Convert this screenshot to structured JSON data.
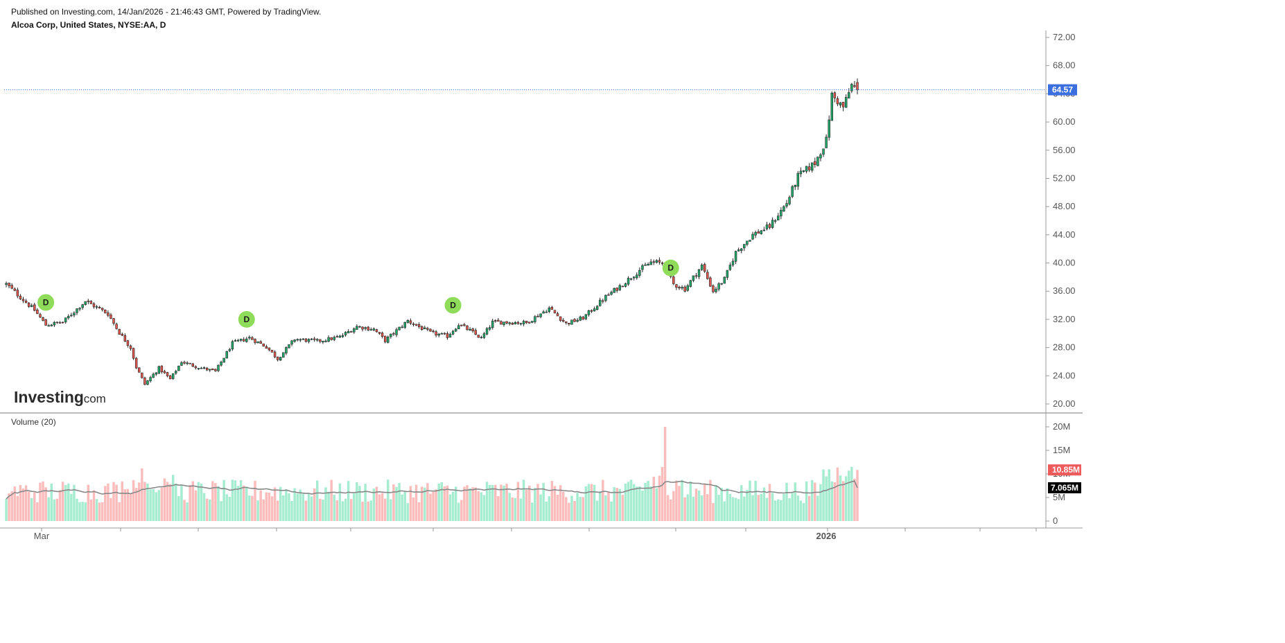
{
  "header": {
    "published": "Published on Investing.com, 14/Jan/2026 - 21:46:43 GMT, Powered by TradingView.",
    "symbol": "Alcoa Corp, United States, NYSE:AA, D"
  },
  "logo": {
    "main": "Investing",
    "suffix": ".com"
  },
  "colors": {
    "up_candle": "#22a86b",
    "down_candle": "#e0574f",
    "up_volume": "#a6ecd0",
    "down_volume": "#fbbcbc",
    "volume_ma": "#888888",
    "price_line": "#2962ff",
    "last_price_badge": "#3b6fe0",
    "volume_badge": "#ef5b5b",
    "volume_ma_badge": "#000000",
    "dividend_marker": "#8fdc5a"
  },
  "chart_data": [
    {
      "type": "candlestick",
      "title": "Alcoa Corp, United States, NYSE:AA, D",
      "y_ticks": [
        "72.00",
        "68.00",
        "64.00",
        "60.00",
        "56.00",
        "52.00",
        "48.00",
        "44.00",
        "40.00",
        "36.00",
        "32.00",
        "28.00",
        "24.00",
        "20.00"
      ],
      "ylim": [
        20,
        72
      ],
      "x_ticks": [
        "Mar",
        "2026"
      ],
      "last_price": "64.57",
      "last_price_value": 64.57,
      "dividend_marker_label": "D",
      "dividend_markers": [
        {
          "index": 14,
          "price": 34.4
        },
        {
          "index": 85,
          "price": 32.0
        },
        {
          "index": 158,
          "price": 34.0
        },
        {
          "index": 235,
          "price": 39.3
        }
      ],
      "anchors": [
        [
          0,
          37.0
        ],
        [
          10,
          33.3
        ],
        [
          14,
          31.2
        ],
        [
          20,
          31.6
        ],
        [
          28,
          34.6
        ],
        [
          36,
          32.8
        ],
        [
          40,
          30.1
        ],
        [
          44,
          28.0
        ],
        [
          46,
          25.2
        ],
        [
          49,
          22.8
        ],
        [
          54,
          25.1
        ],
        [
          58,
          23.5
        ],
        [
          62,
          26.0
        ],
        [
          68,
          25.2
        ],
        [
          74,
          24.6
        ],
        [
          80,
          28.6
        ],
        [
          86,
          29.4
        ],
        [
          92,
          28.1
        ],
        [
          96,
          26.4
        ],
        [
          102,
          29.2
        ],
        [
          110,
          28.9
        ],
        [
          118,
          29.5
        ],
        [
          124,
          31.0
        ],
        [
          130,
          30.6
        ],
        [
          134,
          29.0
        ],
        [
          142,
          31.8
        ],
        [
          150,
          30.1
        ],
        [
          156,
          29.6
        ],
        [
          160,
          31.3
        ],
        [
          164,
          30.4
        ],
        [
          168,
          29.3
        ],
        [
          172,
          31.6
        ],
        [
          178,
          31.6
        ],
        [
          184,
          31.5
        ],
        [
          192,
          33.6
        ],
        [
          198,
          31.4
        ],
        [
          204,
          32.2
        ],
        [
          212,
          35.2
        ],
        [
          218,
          37.0
        ],
        [
          224,
          39.0
        ],
        [
          228,
          40.1
        ],
        [
          232,
          40.0
        ],
        [
          236,
          37.0
        ],
        [
          240,
          36.3
        ],
        [
          246,
          39.6
        ],
        [
          250,
          36.0
        ],
        [
          254,
          37.7
        ],
        [
          258,
          41.5
        ],
        [
          264,
          44.0
        ],
        [
          270,
          45.2
        ],
        [
          276,
          48.5
        ],
        [
          280,
          52.3
        ],
        [
          286,
          54.2
        ],
        [
          290,
          57.4
        ],
        [
          292,
          63.8
        ],
        [
          296,
          62.1
        ],
        [
          299,
          65.2
        ],
        [
          301,
          64.57
        ]
      ],
      "count": 302
    },
    {
      "type": "bar",
      "title": "Volume (20)",
      "y_ticks": [
        "20M",
        "15M",
        "10M",
        "5M",
        "0"
      ],
      "ylim": [
        0,
        20
      ],
      "unit": "M",
      "last_volume": "10.85M",
      "last_volume_value": 10.85,
      "volume_ma_value": "7.065M",
      "volume_ma_numeric": 7.065,
      "volume_seed": 7
    }
  ]
}
